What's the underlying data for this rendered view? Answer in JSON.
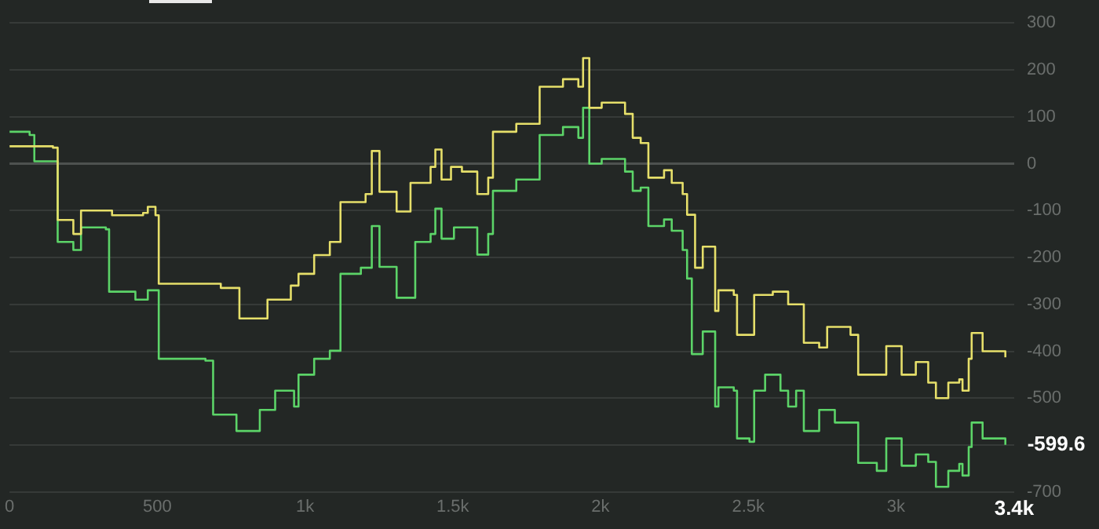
{
  "chart_data": {
    "type": "step",
    "xlim": [
      0,
      3400
    ],
    "ylim": [
      -700,
      300
    ],
    "xticks": [
      0,
      500,
      {
        "value": 1000,
        "label": "1k"
      },
      {
        "value": 1500,
        "label": "1.5k"
      },
      {
        "value": 2000,
        "label": "2k"
      },
      {
        "value": 2500,
        "label": "2.5k"
      },
      {
        "value": 3000,
        "label": "3k"
      },
      {
        "value": 3400,
        "label": "3.4k"
      }
    ],
    "yticks": [
      300,
      200,
      100,
      0,
      -100,
      -200,
      -300,
      -400,
      -500,
      {
        "value": -600,
        "label": null
      },
      -700
    ],
    "grid": "y",
    "legend": false,
    "marker": "none",
    "line_style": "solid",
    "annotations": [
      {
        "text": "-599.6",
        "x": 3370,
        "y": -599.6
      }
    ],
    "series": [
      {
        "color": "#e6df6a",
        "x": [
          0,
          147,
          163,
          216,
          242,
          347,
          452,
          468,
          494,
          505,
          715,
          778,
          873,
          952,
          978,
          1031,
          1084,
          1120,
          1205,
          1226,
          1252,
          1310,
          1357,
          1425,
          1441,
          1462,
          1494,
          1531,
          1583,
          1620,
          1636,
          1715,
          1794,
          1873,
          1925,
          1941,
          1962,
          2004,
          2083,
          2109,
          2136,
          2162,
          2215,
          2241,
          2278,
          2293,
          2320,
          2346,
          2372,
          2388,
          2399,
          2451,
          2462,
          2520,
          2583,
          2635,
          2688,
          2740,
          2767,
          2846,
          2872,
          2935,
          2967,
          3019,
          3067,
          3109,
          3135,
          3177,
          3214,
          3225,
          3246,
          3256,
          3293,
          3370
        ],
        "values": [
          37,
          34,
          -120,
          -150,
          -100,
          -110,
          -105,
          -92,
          -110,
          -256,
          -265,
          -330,
          -290,
          -260,
          -235,
          -195,
          -167,
          -82,
          -65,
          27,
          -60,
          -102,
          -41,
          -7,
          30,
          -34,
          -7,
          -17,
          -65,
          -30,
          68,
          85,
          164,
          180,
          164,
          225,
          119,
          130,
          106,
          55,
          44,
          -30,
          -14,
          -41,
          -65,
          -109,
          -222,
          -177,
          -177,
          -314,
          -270,
          -280,
          -365,
          -280,
          -273,
          -300,
          -382,
          -392,
          -348,
          -365,
          -450,
          -450,
          -389,
          -450,
          -423,
          -467,
          -500,
          -467,
          -460,
          -484,
          -416,
          -361,
          -400,
          -413
        ]
      },
      {
        "color": "#5cd468",
        "x": [
          0,
          68,
          84,
          163,
          216,
          242,
          326,
          337,
          426,
          468,
          505,
          663,
          689,
          768,
          847,
          899,
          963,
          978,
          1031,
          1084,
          1120,
          1189,
          1226,
          1252,
          1310,
          1373,
          1425,
          1441,
          1462,
          1504,
          1583,
          1620,
          1636,
          1715,
          1794,
          1873,
          1925,
          1941,
          1962,
          2004,
          2083,
          2109,
          2136,
          2162,
          2215,
          2241,
          2278,
          2293,
          2309,
          2346,
          2372,
          2388,
          2399,
          2451,
          2462,
          2504,
          2520,
          2557,
          2609,
          2635,
          2662,
          2688,
          2740,
          2793,
          2846,
          2872,
          2935,
          2967,
          3019,
          3067,
          3109,
          3135,
          3177,
          3214,
          3225,
          3246,
          3256,
          3293,
          3370
        ],
        "values": [
          68,
          61,
          5,
          -167,
          -184,
          -136,
          -140,
          -273,
          -290,
          -270,
          -416,
          -420,
          -535,
          -570,
          -525,
          -484,
          -518,
          -450,
          -416,
          -399,
          -235,
          -222,
          -133,
          -220,
          -286,
          -167,
          -150,
          -96,
          -160,
          -136,
          -194,
          -150,
          -58,
          -34,
          61,
          78,
          55,
          119,
          0,
          10,
          -17,
          -58,
          -51,
          -133,
          -119,
          -143,
          -184,
          -245,
          -406,
          -358,
          -358,
          -518,
          -477,
          -484,
          -586,
          -593,
          -484,
          -450,
          -484,
          -518,
          -484,
          -570,
          -525,
          -552,
          -552,
          -638,
          -655,
          -586,
          -644,
          -620,
          -636,
          -689,
          -655,
          -640,
          -665,
          -604,
          -552,
          -586,
          -599.6
        ]
      }
    ]
  }
}
